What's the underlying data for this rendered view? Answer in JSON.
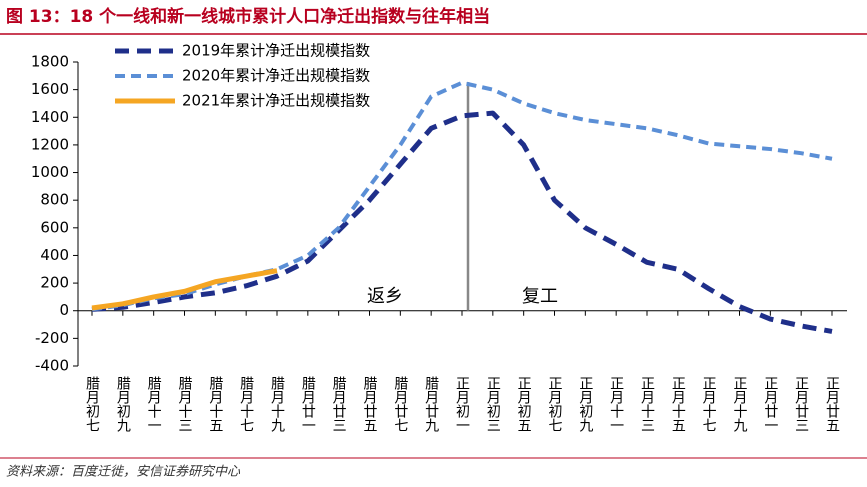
{
  "chart_data": {
    "type": "line",
    "title": "图 13：18 个一线和新一线城市累计人口净迁出指数与往年相当",
    "source": "资料来源：百度迁徙，安信证券研究中心",
    "categories": [
      "腊月初七",
      "腊月初九",
      "腊月十一",
      "腊月十三",
      "腊月十五",
      "腊月十七",
      "腊月十九",
      "腊月廿一",
      "腊月廿三",
      "腊月廿五",
      "腊月廿七",
      "腊月廿九",
      "正月初一",
      "正月初三",
      "正月初五",
      "正月初七",
      "正月初九",
      "正月十一",
      "正月十三",
      "正月十五",
      "正月十七",
      "正月十九",
      "正月廿一",
      "正月廿三",
      "正月廿五"
    ],
    "series": [
      {
        "name": "2019年累计净迁出规模指数",
        "color": "#1f2f8a",
        "dash": true,
        "values": [
          10,
          25,
          60,
          100,
          130,
          180,
          250,
          360,
          580,
          800,
          1060,
          1320,
          1410,
          1430,
          1200,
          800,
          600,
          480,
          350,
          300,
          160,
          30,
          -60,
          -110,
          -150
        ]
      },
      {
        "name": "2020年累计净迁出规模指数",
        "color": "#5b8fd6",
        "dash": true,
        "values": [
          10,
          40,
          90,
          120,
          190,
          250,
          300,
          400,
          600,
          900,
          1200,
          1550,
          1650,
          1600,
          1500,
          1430,
          1380,
          1350,
          1320,
          1270,
          1210,
          1190,
          1170,
          1140,
          1100
        ]
      },
      {
        "name": "2021年累计净迁出规模指数",
        "color": "#f5a623",
        "dash": false,
        "values": [
          20,
          50,
          100,
          140,
          210,
          250,
          290,
          null,
          null,
          null,
          null,
          null,
          null,
          null,
          null,
          null,
          null,
          null,
          null,
          null,
          null,
          null,
          null,
          null,
          null
        ]
      }
    ],
    "ylim": [
      -400,
      1800
    ],
    "yticks": [
      -400,
      -200,
      0,
      200,
      400,
      600,
      800,
      1000,
      1200,
      1400,
      1600,
      1800
    ],
    "divider_category": "正月初一",
    "annotations": [
      "返乡",
      "复工"
    ],
    "legend": "upper left"
  }
}
